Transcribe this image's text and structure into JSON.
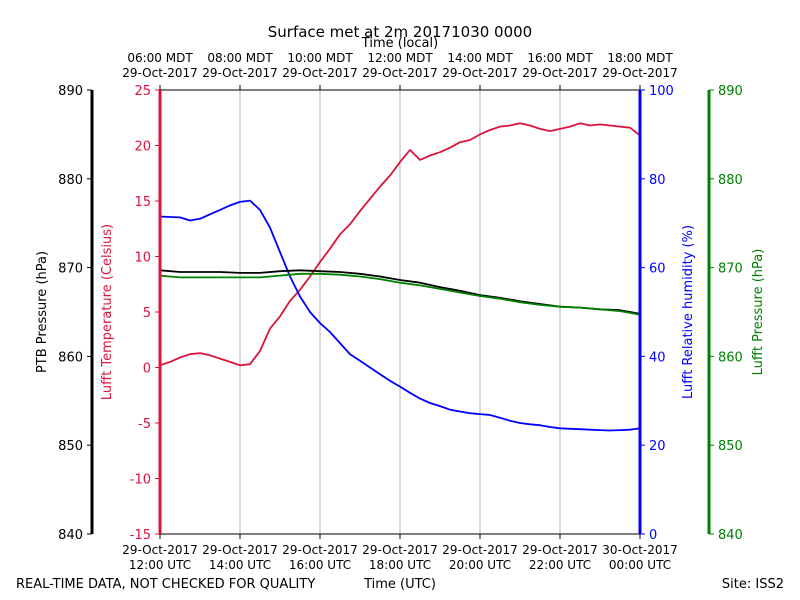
{
  "chart_data": {
    "type": "line",
    "title": "Surface met at 2m 20171030 0000",
    "x_top_label": "Time (local)",
    "xlabel": "Time (UTC)",
    "footer_left": "REAL-TIME DATA, NOT CHECKED FOR QUALITY",
    "footer_right": "Site: ISS2",
    "x_hours": [
      12,
      20
    ],
    "bottom_ticks": [
      {
        "hour": 12,
        "line1": "29-Oct-2017",
        "line2": "12:00 UTC"
      },
      {
        "hour": 14,
        "line1": "29-Oct-2017",
        "line2": "14:00 UTC"
      },
      {
        "hour": 16,
        "line1": "29-Oct-2017",
        "line2": "16:00 UTC"
      },
      {
        "hour": 18,
        "line1": "29-Oct-2017",
        "line2": "18:00 UTC"
      },
      {
        "hour": 20,
        "line1": "29-Oct-2017",
        "line2": "20:00 UTC"
      },
      {
        "hour": 22,
        "line1": "29-Oct-2017",
        "line2": "22:00 UTC"
      },
      {
        "hour": 24,
        "line1": "30-Oct-2017",
        "line2": "00:00 UTC"
      }
    ],
    "top_ticks": [
      {
        "hour": 12,
        "line1": "06:00 MDT",
        "line2": "29-Oct-2017"
      },
      {
        "hour": 14,
        "line1": "08:00 MDT",
        "line2": "29-Oct-2017"
      },
      {
        "hour": 16,
        "line1": "10:00 MDT",
        "line2": "29-Oct-2017"
      },
      {
        "hour": 18,
        "line1": "12:00 MDT",
        "line2": "29-Oct-2017"
      },
      {
        "hour": 20,
        "line1": "14:00 MDT",
        "line2": "29-Oct-2017"
      },
      {
        "hour": 22,
        "line1": "16:00 MDT",
        "line2": "29-Oct-2017"
      },
      {
        "hour": 24,
        "line1": "18:00 MDT",
        "line2": "29-Oct-2017"
      }
    ],
    "axes": {
      "ptb": {
        "label": "PTB Pressure (hPa)",
        "ylim": [
          840,
          890
        ],
        "ticks": [
          840,
          850,
          860,
          870,
          880,
          890
        ],
        "color": "#000000"
      },
      "temp": {
        "label": "Lufft Temperature (Celsius)",
        "ylim": [
          -15,
          25
        ],
        "ticks": [
          -15,
          -10,
          -5,
          0,
          5,
          10,
          15,
          20,
          25
        ],
        "color": "#dc143c"
      },
      "rh": {
        "label": "Lufft Relative humidity (%)",
        "ylim": [
          0,
          100
        ],
        "ticks": [
          0,
          20,
          40,
          60,
          80,
          100
        ],
        "color": "#0000ff"
      },
      "lufft_p": {
        "label": "Lufft Pressure (hPa)",
        "ylim": [
          840,
          890
        ],
        "ticks": [
          840,
          850,
          860,
          870,
          880,
          890
        ],
        "color": "#008000"
      }
    },
    "series": [
      {
        "name": "Lufft Temperature",
        "axis": "temp",
        "color": "#dc143c",
        "x": [
          12.0,
          12.25,
          12.5,
          12.75,
          13.0,
          13.25,
          13.5,
          13.75,
          14.0,
          14.25,
          14.5,
          14.75,
          15.0,
          15.25,
          15.5,
          15.75,
          16.0,
          16.25,
          16.5,
          16.75,
          17.0,
          17.25,
          17.5,
          17.75,
          18.0,
          18.25,
          18.5,
          18.75,
          19.0,
          19.25,
          19.5,
          19.75,
          20.0,
          20.25,
          20.5,
          20.75,
          21.0,
          21.25,
          21.5,
          21.75,
          22.0,
          22.25,
          22.5,
          22.75,
          23.0,
          23.25,
          23.5,
          23.75,
          24.0
        ],
        "y": [
          0.2,
          0.5,
          0.9,
          1.2,
          1.3,
          1.1,
          0.8,
          0.5,
          0.2,
          0.3,
          1.5,
          3.5,
          4.6,
          6.0,
          7.0,
          8.2,
          9.5,
          10.7,
          12.0,
          12.9,
          14.1,
          15.2,
          16.3,
          17.3,
          18.5,
          19.6,
          18.7,
          19.1,
          19.4,
          19.8,
          20.3,
          20.5,
          21.0,
          21.4,
          21.7,
          21.8,
          22.0,
          21.8,
          21.5,
          21.3,
          21.5,
          21.7,
          22.0,
          21.8,
          21.9,
          21.8,
          21.7,
          21.6,
          20.9
        ]
      },
      {
        "name": "Lufft Relative humidity",
        "axis": "rh",
        "color": "#0000ff",
        "x": [
          12.0,
          12.25,
          12.5,
          12.75,
          13.0,
          13.25,
          13.5,
          13.75,
          14.0,
          14.25,
          14.5,
          14.75,
          15.0,
          15.25,
          15.5,
          15.75,
          16.0,
          16.25,
          16.5,
          16.75,
          17.0,
          17.25,
          17.5,
          17.75,
          18.0,
          18.25,
          18.5,
          18.75,
          19.0,
          19.25,
          19.5,
          19.75,
          20.0,
          20.25,
          20.5,
          20.75,
          21.0,
          21.25,
          21.5,
          21.75,
          22.0,
          22.25,
          22.5,
          22.75,
          23.0,
          23.25,
          23.5,
          23.75,
          24.0
        ],
        "y": [
          71.5,
          71.4,
          71.3,
          70.6,
          71.0,
          72.0,
          73.0,
          74.0,
          74.8,
          75.1,
          73.0,
          69.0,
          63.5,
          58.0,
          53.5,
          50.0,
          47.5,
          45.5,
          43.0,
          40.5,
          39.0,
          37.5,
          36.0,
          34.5,
          33.2,
          31.8,
          30.5,
          29.5,
          28.8,
          28.0,
          27.6,
          27.2,
          27.0,
          26.8,
          26.2,
          25.5,
          25.0,
          24.7,
          24.5,
          24.1,
          23.8,
          23.7,
          23.6,
          23.5,
          23.4,
          23.3,
          23.4,
          23.5,
          23.8
        ]
      },
      {
        "name": "PTB Pressure",
        "axis": "ptb",
        "color": "#000000",
        "x": [
          12.0,
          12.5,
          13.0,
          13.5,
          14.0,
          14.5,
          15.0,
          15.5,
          16.0,
          16.5,
          17.0,
          17.5,
          18.0,
          18.5,
          19.0,
          19.5,
          20.0,
          20.5,
          21.0,
          21.5,
          22.0,
          22.5,
          23.0,
          23.5,
          24.0
        ],
        "y": [
          869.7,
          869.5,
          869.5,
          869.5,
          869.4,
          869.4,
          869.6,
          869.7,
          869.6,
          869.5,
          869.3,
          869.0,
          868.6,
          868.3,
          867.8,
          867.4,
          866.9,
          866.6,
          866.2,
          865.9,
          865.6,
          865.5,
          865.3,
          865.2,
          864.8
        ]
      },
      {
        "name": "Lufft Pressure",
        "axis": "lufft_p",
        "color": "#008000",
        "x": [
          12.0,
          12.5,
          13.0,
          13.5,
          14.0,
          14.5,
          15.0,
          15.5,
          16.0,
          16.5,
          17.0,
          17.5,
          18.0,
          18.5,
          19.0,
          19.5,
          20.0,
          20.5,
          21.0,
          21.5,
          22.0,
          22.5,
          23.0,
          23.5,
          24.0
        ],
        "y": [
          869.1,
          868.9,
          868.9,
          868.9,
          868.9,
          868.9,
          869.1,
          869.3,
          869.3,
          869.2,
          869.0,
          868.7,
          868.3,
          868.0,
          867.6,
          867.2,
          866.8,
          866.5,
          866.1,
          865.8,
          865.6,
          865.5,
          865.3,
          865.1,
          864.7
        ]
      }
    ]
  }
}
